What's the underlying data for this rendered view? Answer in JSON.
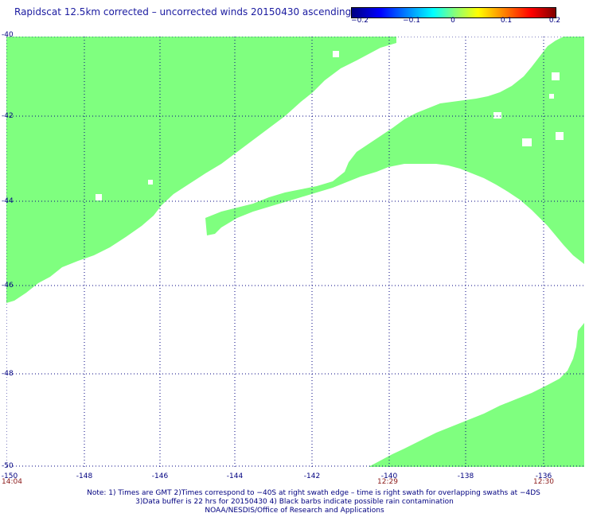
{
  "title": "Rapidscat 12.5km corrected – uncorrected winds 20150430 ascending",
  "colorbar": {
    "ticks": [
      "−0.2",
      "−0.1",
      "0",
      "0.1",
      "0.2"
    ],
    "min": -0.2,
    "max": 0.2
  },
  "map": {
    "lat_labels": [
      "-40",
      "-42",
      "-44",
      "-46",
      "-48",
      "-50"
    ],
    "lon_labels": [
      "-150",
      "-148",
      "-146",
      "-144",
      "-142",
      "-140",
      "-138",
      "-136"
    ],
    "time_labels": [
      "14:04",
      "12:29",
      "12:30"
    ],
    "lat_range": [
      -50,
      -40
    ],
    "lon_range": [
      -150,
      -134.6
    ],
    "swath_color": "#7fff7f",
    "grid_color": "#000080"
  },
  "notes": [
    "Note: 1) Times are GMT 2)Times correspond to −40S at right swath edge – time is right swath for overlapping swaths at −4DS",
    "3)Data buffer is 22 hrs for 20150430 4) Black barbs indicate possible rain contamination",
    "NOAA/NESDIS/Office of Research and Applications"
  ]
}
